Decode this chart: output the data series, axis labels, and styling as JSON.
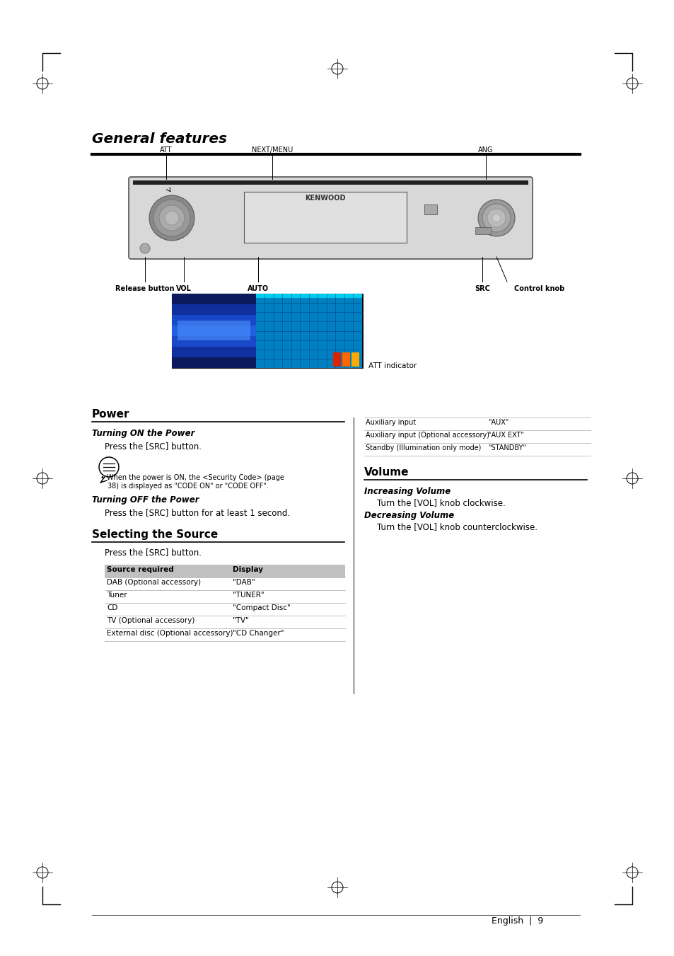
{
  "page_bg": "#ffffff",
  "title": "General features",
  "section_power_title": "Power",
  "section_power_subtitle1": "Turning ON the Power",
  "section_power_text1": "Press the [SRC] button.",
  "section_power_note_line1": "When the power is ON, the <Security Code> (page",
  "section_power_note_line2": "38) is displayed as \"CODE ON\" or \"CODE OFF\".",
  "section_power_subtitle2": "Turning OFF the Power",
  "section_power_text2": "Press the [SRC] button for at least 1 second.",
  "section_source_title": "Selecting the Source",
  "section_source_intro": "Press the [SRC] button.",
  "source_table_header": [
    "Source required",
    "Display"
  ],
  "source_table_rows": [
    [
      "DAB (Optional accessory)",
      "\"DAB\""
    ],
    [
      "Tuner",
      "\"TUNER\""
    ],
    [
      "CD",
      "\"Compact Disc\""
    ],
    [
      "TV (Optional accessory)",
      "\"TV\""
    ],
    [
      "External disc (Optional accessory)",
      "\"CD Changer\""
    ]
  ],
  "section_volume_title": "Volume",
  "section_volume_subtitle1": "Increasing Volume",
  "section_volume_text1": "Turn the [VOL] knob clockwise.",
  "section_volume_subtitle2": "Decreasing Volume",
  "section_volume_text2": "Turn the [VOL] knob counterclockwise.",
  "right_table_rows": [
    [
      "Auxiliary input",
      "\"AUX\""
    ],
    [
      "Auxiliary input (Optional accessory)",
      "\"AUX EXT\""
    ],
    [
      "Standby (Illumination only mode)",
      "\"STANDBY\""
    ]
  ],
  "page_number": "9",
  "page_lang": "English",
  "att_indicator_label": "ATT indicator"
}
